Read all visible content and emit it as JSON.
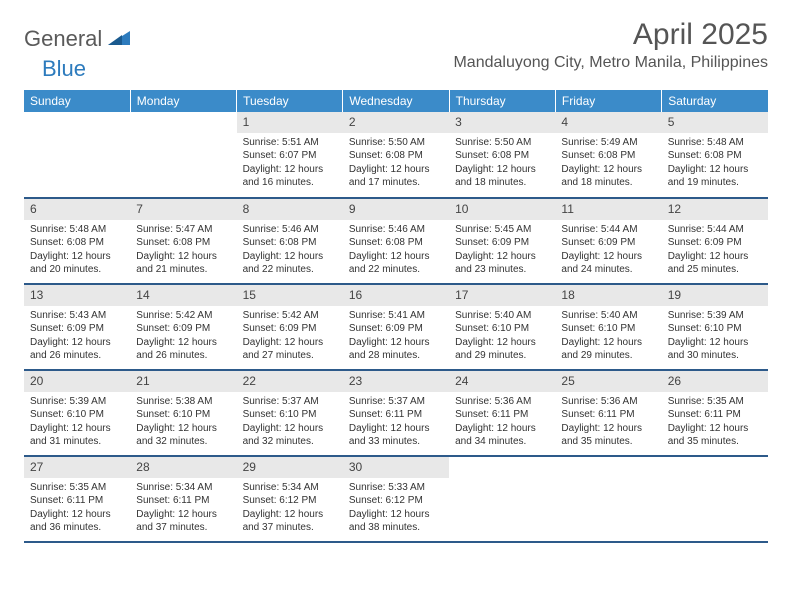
{
  "logo": {
    "text1": "General",
    "text2": "Blue"
  },
  "title": "April 2025",
  "location": "Mandaluyong City, Metro Manila, Philippines",
  "colors": {
    "header_bg": "#3b8bc9",
    "header_text": "#ffffff",
    "daynum_bg": "#e8e8e8",
    "border": "#2d5a8a",
    "logo_gray": "#5a5a5a",
    "logo_blue": "#2d7bbd",
    "text": "#333333"
  },
  "typography": {
    "title_fontsize": 30,
    "location_fontsize": 16,
    "header_fontsize": 12,
    "daynum_fontsize": 12,
    "body_fontsize": 10
  },
  "weekdays": [
    "Sunday",
    "Monday",
    "Tuesday",
    "Wednesday",
    "Thursday",
    "Friday",
    "Saturday"
  ],
  "weeks": [
    [
      null,
      null,
      {
        "n": "1",
        "sunrise": "Sunrise: 5:51 AM",
        "sunset": "Sunset: 6:07 PM",
        "daylight": "Daylight: 12 hours and 16 minutes."
      },
      {
        "n": "2",
        "sunrise": "Sunrise: 5:50 AM",
        "sunset": "Sunset: 6:08 PM",
        "daylight": "Daylight: 12 hours and 17 minutes."
      },
      {
        "n": "3",
        "sunrise": "Sunrise: 5:50 AM",
        "sunset": "Sunset: 6:08 PM",
        "daylight": "Daylight: 12 hours and 18 minutes."
      },
      {
        "n": "4",
        "sunrise": "Sunrise: 5:49 AM",
        "sunset": "Sunset: 6:08 PM",
        "daylight": "Daylight: 12 hours and 18 minutes."
      },
      {
        "n": "5",
        "sunrise": "Sunrise: 5:48 AM",
        "sunset": "Sunset: 6:08 PM",
        "daylight": "Daylight: 12 hours and 19 minutes."
      }
    ],
    [
      {
        "n": "6",
        "sunrise": "Sunrise: 5:48 AM",
        "sunset": "Sunset: 6:08 PM",
        "daylight": "Daylight: 12 hours and 20 minutes."
      },
      {
        "n": "7",
        "sunrise": "Sunrise: 5:47 AM",
        "sunset": "Sunset: 6:08 PM",
        "daylight": "Daylight: 12 hours and 21 minutes."
      },
      {
        "n": "8",
        "sunrise": "Sunrise: 5:46 AM",
        "sunset": "Sunset: 6:08 PM",
        "daylight": "Daylight: 12 hours and 22 minutes."
      },
      {
        "n": "9",
        "sunrise": "Sunrise: 5:46 AM",
        "sunset": "Sunset: 6:08 PM",
        "daylight": "Daylight: 12 hours and 22 minutes."
      },
      {
        "n": "10",
        "sunrise": "Sunrise: 5:45 AM",
        "sunset": "Sunset: 6:09 PM",
        "daylight": "Daylight: 12 hours and 23 minutes."
      },
      {
        "n": "11",
        "sunrise": "Sunrise: 5:44 AM",
        "sunset": "Sunset: 6:09 PM",
        "daylight": "Daylight: 12 hours and 24 minutes."
      },
      {
        "n": "12",
        "sunrise": "Sunrise: 5:44 AM",
        "sunset": "Sunset: 6:09 PM",
        "daylight": "Daylight: 12 hours and 25 minutes."
      }
    ],
    [
      {
        "n": "13",
        "sunrise": "Sunrise: 5:43 AM",
        "sunset": "Sunset: 6:09 PM",
        "daylight": "Daylight: 12 hours and 26 minutes."
      },
      {
        "n": "14",
        "sunrise": "Sunrise: 5:42 AM",
        "sunset": "Sunset: 6:09 PM",
        "daylight": "Daylight: 12 hours and 26 minutes."
      },
      {
        "n": "15",
        "sunrise": "Sunrise: 5:42 AM",
        "sunset": "Sunset: 6:09 PM",
        "daylight": "Daylight: 12 hours and 27 minutes."
      },
      {
        "n": "16",
        "sunrise": "Sunrise: 5:41 AM",
        "sunset": "Sunset: 6:09 PM",
        "daylight": "Daylight: 12 hours and 28 minutes."
      },
      {
        "n": "17",
        "sunrise": "Sunrise: 5:40 AM",
        "sunset": "Sunset: 6:10 PM",
        "daylight": "Daylight: 12 hours and 29 minutes."
      },
      {
        "n": "18",
        "sunrise": "Sunrise: 5:40 AM",
        "sunset": "Sunset: 6:10 PM",
        "daylight": "Daylight: 12 hours and 29 minutes."
      },
      {
        "n": "19",
        "sunrise": "Sunrise: 5:39 AM",
        "sunset": "Sunset: 6:10 PM",
        "daylight": "Daylight: 12 hours and 30 minutes."
      }
    ],
    [
      {
        "n": "20",
        "sunrise": "Sunrise: 5:39 AM",
        "sunset": "Sunset: 6:10 PM",
        "daylight": "Daylight: 12 hours and 31 minutes."
      },
      {
        "n": "21",
        "sunrise": "Sunrise: 5:38 AM",
        "sunset": "Sunset: 6:10 PM",
        "daylight": "Daylight: 12 hours and 32 minutes."
      },
      {
        "n": "22",
        "sunrise": "Sunrise: 5:37 AM",
        "sunset": "Sunset: 6:10 PM",
        "daylight": "Daylight: 12 hours and 32 minutes."
      },
      {
        "n": "23",
        "sunrise": "Sunrise: 5:37 AM",
        "sunset": "Sunset: 6:11 PM",
        "daylight": "Daylight: 12 hours and 33 minutes."
      },
      {
        "n": "24",
        "sunrise": "Sunrise: 5:36 AM",
        "sunset": "Sunset: 6:11 PM",
        "daylight": "Daylight: 12 hours and 34 minutes."
      },
      {
        "n": "25",
        "sunrise": "Sunrise: 5:36 AM",
        "sunset": "Sunset: 6:11 PM",
        "daylight": "Daylight: 12 hours and 35 minutes."
      },
      {
        "n": "26",
        "sunrise": "Sunrise: 5:35 AM",
        "sunset": "Sunset: 6:11 PM",
        "daylight": "Daylight: 12 hours and 35 minutes."
      }
    ],
    [
      {
        "n": "27",
        "sunrise": "Sunrise: 5:35 AM",
        "sunset": "Sunset: 6:11 PM",
        "daylight": "Daylight: 12 hours and 36 minutes."
      },
      {
        "n": "28",
        "sunrise": "Sunrise: 5:34 AM",
        "sunset": "Sunset: 6:11 PM",
        "daylight": "Daylight: 12 hours and 37 minutes."
      },
      {
        "n": "29",
        "sunrise": "Sunrise: 5:34 AM",
        "sunset": "Sunset: 6:12 PM",
        "daylight": "Daylight: 12 hours and 37 minutes."
      },
      {
        "n": "30",
        "sunrise": "Sunrise: 5:33 AM",
        "sunset": "Sunset: 6:12 PM",
        "daylight": "Daylight: 12 hours and 38 minutes."
      },
      null,
      null,
      null
    ]
  ]
}
